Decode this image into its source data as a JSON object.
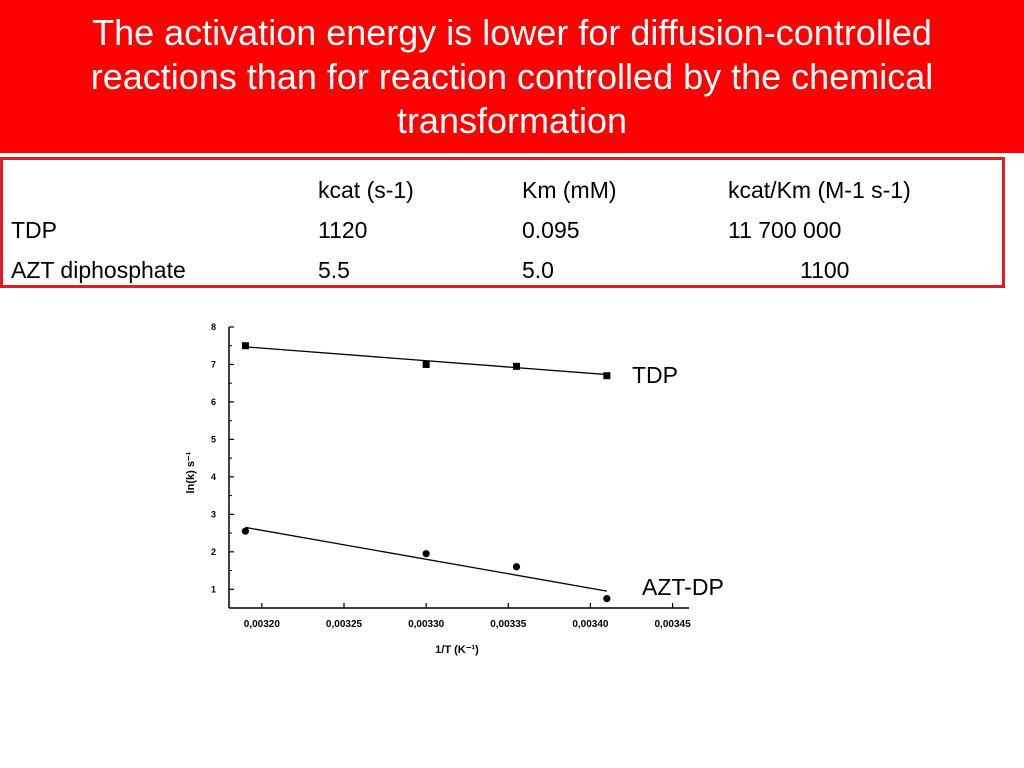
{
  "title": "The activation energy is lower for diffusion-controlled reactions than for reaction controlled by the chemical transformation",
  "table": {
    "headers": [
      "",
      "kcat (s-1)",
      "Km (mM)",
      "kcat/Km (M-1 s-1)"
    ],
    "rows": [
      [
        "TDP",
        "1120",
        "0.095",
        "11 700 000"
      ],
      [
        "AZT diphosphate",
        "5.5",
        "5.0",
        "1100"
      ]
    ]
  },
  "chart_data": {
    "type": "scatter",
    "xlabel": "1/T  (K⁻¹)",
    "ylabel": "ln(k) s⁻¹",
    "xlim": [
      0.00318,
      0.00346
    ],
    "ylim": [
      0.5,
      8
    ],
    "x_ticks": [
      "0,00320",
      "0,00325",
      "0,00330",
      "0,00335",
      "0,00340",
      "0,00345"
    ],
    "y_ticks": [
      "1",
      "2",
      "3",
      "4",
      "5",
      "6",
      "7",
      "8"
    ],
    "grid": false,
    "series": [
      {
        "name": "TDP",
        "marker": "square",
        "x": [
          0.00319,
          0.0033,
          0.003355,
          0.00341
        ],
        "y": [
          7.5,
          7.0,
          6.95,
          6.7
        ],
        "fit": [
          [
            0.00319,
            7.47
          ],
          [
            0.00341,
            6.73
          ]
        ]
      },
      {
        "name": "AZT-DP",
        "marker": "circle",
        "x": [
          0.00319,
          0.0033,
          0.003355,
          0.00341
        ],
        "y": [
          2.55,
          1.95,
          1.6,
          0.75
        ],
        "fit": [
          [
            0.00319,
            2.65
          ],
          [
            0.00341,
            0.95
          ]
        ]
      }
    ]
  }
}
